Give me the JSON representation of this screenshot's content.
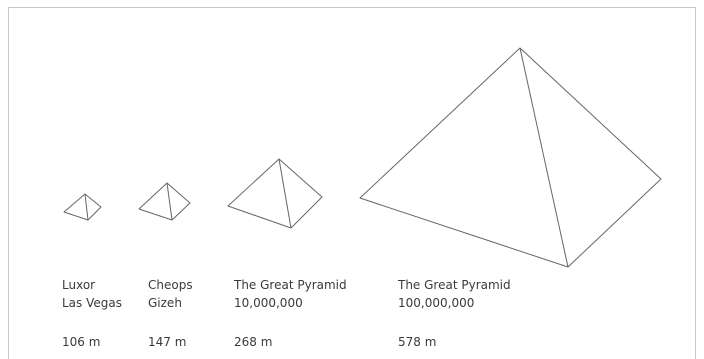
{
  "pyramids": [
    {
      "name": "Luxor",
      "location": "Las Vegas",
      "height": "106 m",
      "height_m": 106
    },
    {
      "name": "Cheops",
      "location": "Gizeh",
      "height": "147 m",
      "height_m": 147
    },
    {
      "name": "The Great Pyramid",
      "location": "10,000,000",
      "height": "268 m",
      "height_m": 268
    },
    {
      "name": "The Great Pyramid",
      "location": "100,000,000",
      "height": "578 m",
      "height_m": 578
    }
  ],
  "colors": {
    "stroke": "#666666",
    "text": "#3a3a3a",
    "frame": "#c8c8c8"
  }
}
